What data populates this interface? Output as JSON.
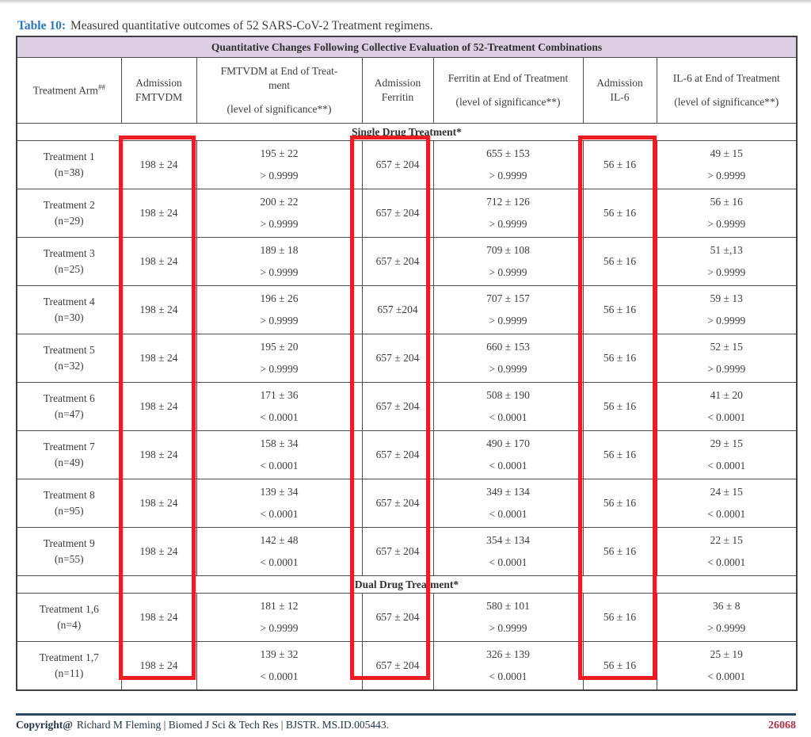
{
  "page": {
    "title_label": "Table 10:",
    "title_text": "Measured quantitative outcomes of 52 SARS-CoV-2 Treatment regimens."
  },
  "table": {
    "banner": "Quantitative Changes Following Collective Evaluation of 52-Treatment Combinations",
    "header": {
      "col1": {
        "text": "Treatment Arm",
        "sup": "##"
      },
      "col2": [
        "Admission",
        "FMTVDM"
      ],
      "col3": {
        "line1": "FMTVDM at End of Treat-ment",
        "line2": "(level of significance**)"
      },
      "col4": [
        "Admission",
        "Ferritin"
      ],
      "col5": {
        "line1": "Ferritin at End of Treatment",
        "line2": "(level of significance**)"
      },
      "col6": [
        "Admission",
        "IL-6"
      ],
      "col7": {
        "line1": "IL-6 at End of Treatment",
        "line2": "(level of significance**)"
      }
    },
    "sections": [
      {
        "header": "Single Drug Treatment*",
        "rows": [
          {
            "arm": "Treatment 1",
            "n": "(n=38)",
            "adm_fmtvdm": "198 ± 24",
            "fmtvdm_end": "195 ± 22",
            "fmtvdm_sig": "> 0.9999",
            "adm_ferritin": "657 ± 204",
            "ferritin_end": "655 ± 153",
            "ferritin_sig": "> 0.9999",
            "adm_il6": "56 ± 16",
            "il6_end": "49 ± 15",
            "il6_sig": "> 0.9999"
          },
          {
            "arm": "Treatment 2",
            "n": "(n=29)",
            "adm_fmtvdm": "198 ± 24",
            "fmtvdm_end": "200 ± 22",
            "fmtvdm_sig": "> 0.9999",
            "adm_ferritin": "657 ± 204",
            "ferritin_end": "712 ± 126",
            "ferritin_sig": "> 0.9999",
            "adm_il6": "56 ± 16",
            "il6_end": "56 ± 16",
            "il6_sig": "> 0.9999"
          },
          {
            "arm": "Treatment 3",
            "n": "(n=25)",
            "adm_fmtvdm": "198 ± 24",
            "fmtvdm_end": "189 ± 18",
            "fmtvdm_sig": "> 0.9999",
            "adm_ferritin": "657 ± 204",
            "ferritin_end": "709 ± 108",
            "ferritin_sig": "> 0.9999",
            "adm_il6": "56 ± 16",
            "il6_end": "51 ±,13",
            "il6_sig": "> 0.9999"
          },
          {
            "arm": "Treatment 4",
            "n": "(n=30)",
            "adm_fmtvdm": "198 ± 24",
            "fmtvdm_end": "196 ± 26",
            "fmtvdm_sig": "> 0.9999",
            "adm_ferritin": "657 ±204",
            "ferritin_end": "707 ± 157",
            "ferritin_sig": "> 0.9999",
            "adm_il6": "56 ± 16",
            "il6_end": "59 ± 13",
            "il6_sig": "> 0.9999"
          },
          {
            "arm": "Treatment 5",
            "n": "(n=32)",
            "adm_fmtvdm": "198 ± 24",
            "fmtvdm_end": "195 ± 20",
            "fmtvdm_sig": "> 0.9999",
            "adm_ferritin": "657 ± 204",
            "ferritin_end": "660 ± 153",
            "ferritin_sig": "> 0.9999",
            "adm_il6": "56 ± 16",
            "il6_end": "52 ± 15",
            "il6_sig": "> 0.9999"
          },
          {
            "arm": "Treatment 6",
            "n": "(n=47)",
            "adm_fmtvdm": "198 ± 24",
            "fmtvdm_end": "171 ± 36",
            "fmtvdm_sig": "< 0.0001",
            "adm_ferritin": "657 ± 204",
            "ferritin_end": "508 ± 190",
            "ferritin_sig": "< 0.0001",
            "adm_il6": "56 ± 16",
            "il6_end": "41 ± 20",
            "il6_sig": "< 0.0001"
          },
          {
            "arm": "Treatment 7",
            "n": "(n=49)",
            "adm_fmtvdm": "198 ± 24",
            "fmtvdm_end": "158 ± 34",
            "fmtvdm_sig": "< 0.0001",
            "adm_ferritin": "657 ± 204",
            "ferritin_end": "490 ± 170",
            "ferritin_sig": "< 0.0001",
            "adm_il6": "56 ± 16",
            "il6_end": "29 ± 15",
            "il6_sig": "< 0.0001"
          },
          {
            "arm": "Treatment 8",
            "n": "(n=95)",
            "adm_fmtvdm": "198 ± 24",
            "fmtvdm_end": "139 ± 34",
            "fmtvdm_sig": "< 0.0001",
            "adm_ferritin": "657 ± 204",
            "ferritin_end": "349 ± 134",
            "ferritin_sig": "< 0.0001",
            "adm_il6": "56 ± 16",
            "il6_end": "24 ± 15",
            "il6_sig": "< 0.0001"
          },
          {
            "arm": "Treatment 9",
            "n": "(n=55)",
            "adm_fmtvdm": "198 ± 24",
            "fmtvdm_end": "142 ± 48",
            "fmtvdm_sig": "< 0.0001",
            "adm_ferritin": "657 ± 204",
            "ferritin_end": "354 ± 134",
            "ferritin_sig": "< 0.0001",
            "adm_il6": "56 ± 16",
            "il6_end": "22 ± 15",
            "il6_sig": "< 0.0001"
          }
        ]
      },
      {
        "header": "Dual Drug Treatment*",
        "rows": [
          {
            "arm": "Treatment 1,6",
            "n": "(n=4)",
            "adm_fmtvdm": "198 ± 24",
            "fmtvdm_end": "181 ± 12",
            "fmtvdm_sig": "> 0.9999",
            "adm_ferritin": "657 ± 204",
            "ferritin_end": "580 ± 101",
            "ferritin_sig": "> 0.9999",
            "adm_il6": "56 ± 16",
            "il6_end": "36 ± 8",
            "il6_sig": "> 0.9999"
          },
          {
            "arm": "Treatment 1,7",
            "n": "(n=11)",
            "adm_fmtvdm": "198 ± 24",
            "fmtvdm_end": "139 ± 32",
            "fmtvdm_sig": "< 0.0001",
            "adm_ferritin": "657 ± 204",
            "ferritin_end": "326 ± 139",
            "ferritin_sig": "< 0.0001",
            "adm_il6": "56 ± 16",
            "il6_end": "25 ± 19",
            "il6_sig": "< 0.0001"
          }
        ]
      }
    ]
  },
  "annotations": {
    "highlight_color": "#ec1c24",
    "highlighted_columns": [
      "Admission FMTVDM",
      "Admission Ferritin",
      "Admission IL-6"
    ]
  },
  "footer": {
    "copyright_label": "Copyright@",
    "copyright_text": "Richard M Fleming | Biomed J Sci & Tech Res | BJSTR. MS.ID.005443.",
    "page_number": "26068"
  },
  "colors": {
    "banner_bg": "#ded0e4",
    "title_accent": "#2878be",
    "table_border": "#4d4d4d",
    "footer_line": "#2c4a63",
    "page_number": "#a93246",
    "highlight": "#ec1c24"
  }
}
